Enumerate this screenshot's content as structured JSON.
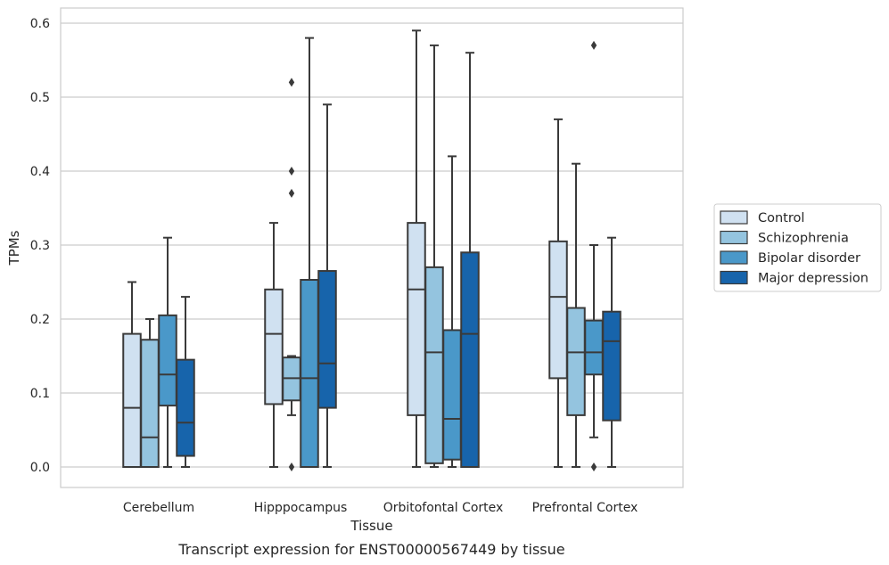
{
  "chart_data": {
    "type": "box",
    "title": "",
    "xlabel": "Tissue",
    "ylabel": "TPMs",
    "caption": "Transcript expression for ENST00000567449 by tissue",
    "ylim": [
      -0.03,
      0.62
    ],
    "yticks": [
      "0.0",
      "0.1",
      "0.2",
      "0.3",
      "0.4",
      "0.5",
      "0.6"
    ],
    "ytick_values": [
      0.0,
      0.1,
      0.2,
      0.3,
      0.4,
      0.5,
      0.6
    ],
    "grid": "horizontal",
    "legend_position": "right",
    "categories": [
      "Cerebellum",
      "Hipppocampus",
      "Orbitofontal Cortex",
      "Prefrontal Cortex"
    ],
    "series": [
      {
        "name": "Control",
        "color": "#d0e1f1",
        "boxes": [
          {
            "whislo": 0.0,
            "q1": 0.0,
            "med": 0.08,
            "q3": 0.18,
            "whishi": 0.25,
            "fliers": []
          },
          {
            "whislo": 0.0,
            "q1": 0.085,
            "med": 0.18,
            "q3": 0.24,
            "whishi": 0.33,
            "fliers": []
          },
          {
            "whislo": 0.0,
            "q1": 0.07,
            "med": 0.24,
            "q3": 0.33,
            "whishi": 0.59,
            "fliers": []
          },
          {
            "whislo": 0.0,
            "q1": 0.12,
            "med": 0.23,
            "q3": 0.305,
            "whishi": 0.47,
            "fliers": []
          }
        ]
      },
      {
        "name": "Schizophrenia",
        "color": "#94c4df",
        "boxes": [
          {
            "whislo": 0.0,
            "q1": 0.0,
            "med": 0.04,
            "q3": 0.172,
            "whishi": 0.2,
            "fliers": []
          },
          {
            "whislo": 0.07,
            "q1": 0.09,
            "med": 0.12,
            "q3": 0.148,
            "whishi": 0.15,
            "fliers": [
              0.52,
              0.4,
              0.37,
              0.0
            ]
          },
          {
            "whislo": 0.0,
            "q1": 0.005,
            "med": 0.155,
            "q3": 0.27,
            "whishi": 0.57,
            "fliers": []
          },
          {
            "whislo": 0.0,
            "q1": 0.07,
            "med": 0.155,
            "q3": 0.215,
            "whishi": 0.41,
            "fliers": []
          }
        ]
      },
      {
        "name": "Bipolar disorder",
        "color": "#4a98c9",
        "boxes": [
          {
            "whislo": 0.0,
            "q1": 0.083,
            "med": 0.125,
            "q3": 0.205,
            "whishi": 0.31,
            "fliers": []
          },
          {
            "whislo": 0.0,
            "q1": 0.0,
            "med": 0.12,
            "q3": 0.253,
            "whishi": 0.58,
            "fliers": []
          },
          {
            "whislo": 0.0,
            "q1": 0.01,
            "med": 0.065,
            "q3": 0.185,
            "whishi": 0.42,
            "fliers": []
          },
          {
            "whislo": 0.04,
            "q1": 0.125,
            "med": 0.155,
            "q3": 0.198,
            "whishi": 0.3,
            "fliers": [
              0.57,
              0.0
            ]
          }
        ]
      },
      {
        "name": "Major depression",
        "color": "#1764ab",
        "boxes": [
          {
            "whislo": 0.0,
            "q1": 0.015,
            "med": 0.06,
            "q3": 0.145,
            "whishi": 0.23,
            "fliers": []
          },
          {
            "whislo": 0.0,
            "q1": 0.08,
            "med": 0.14,
            "q3": 0.265,
            "whishi": 0.49,
            "fliers": []
          },
          {
            "whislo": 0.0,
            "q1": 0.0,
            "med": 0.18,
            "q3": 0.29,
            "whishi": 0.56,
            "fliers": []
          },
          {
            "whislo": 0.0,
            "q1": 0.063,
            "med": 0.17,
            "q3": 0.21,
            "whishi": 0.31,
            "fliers": []
          }
        ]
      }
    ]
  }
}
